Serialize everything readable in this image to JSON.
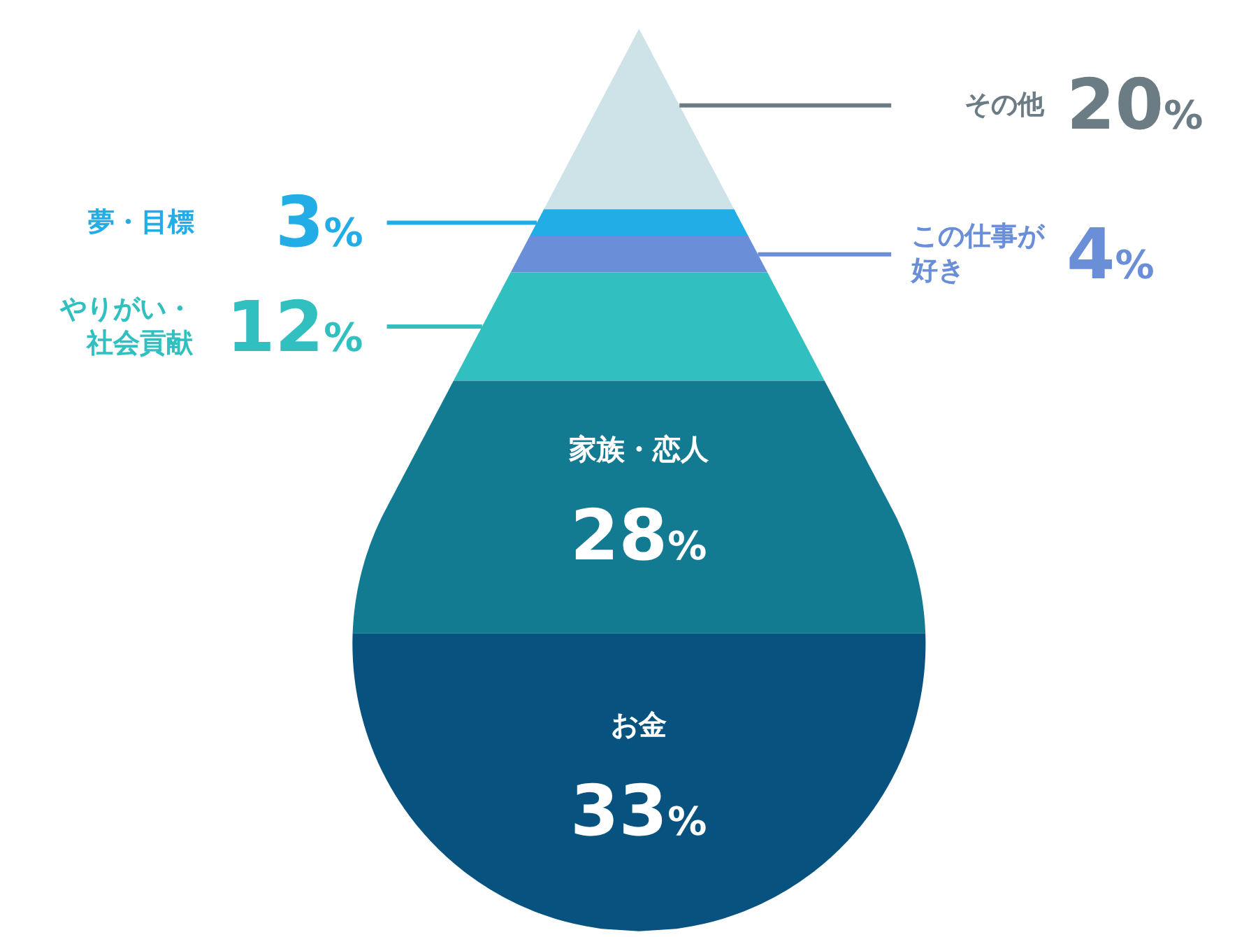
{
  "chart_data": {
    "type": "other",
    "categories": [
      "その他",
      "夢・目標",
      "この仕事が好き",
      "やりがい・社会貢献",
      "家族・恋人",
      "お金"
    ],
    "values": [
      20,
      3,
      4,
      12,
      28,
      33
    ],
    "value_labels": [
      "20%",
      "3%",
      "4%",
      "12%",
      "28%",
      "33%"
    ],
    "colors": [
      "#cde3e8",
      "#22ade6",
      "#6a8fd8",
      "#31bfbf",
      "#127a91",
      "#07527e"
    ]
  }
}
